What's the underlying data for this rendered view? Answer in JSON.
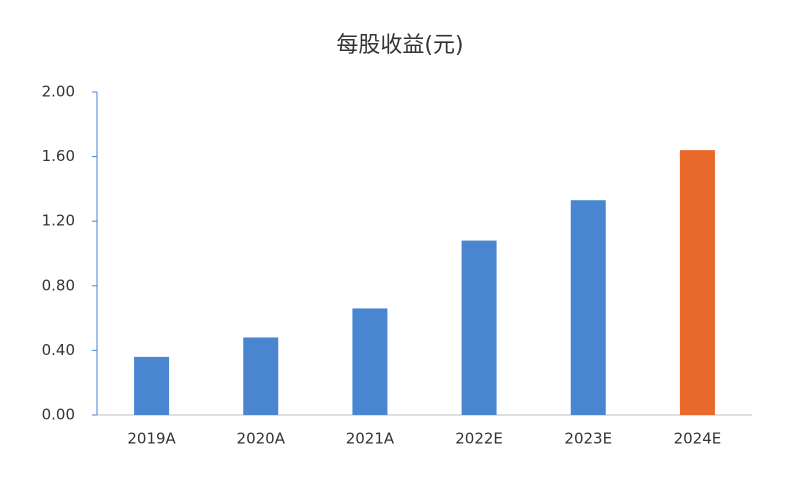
{
  "chart_data": {
    "type": "bar",
    "title": "每股收益(元)",
    "categories": [
      "2019A",
      "2020A",
      "2021A",
      "2022E",
      "2023E",
      "2024E"
    ],
    "values": [
      0.36,
      0.48,
      0.66,
      1.08,
      1.33,
      1.64
    ],
    "colors": [
      "#4a86d0",
      "#4a86d0",
      "#4a86d0",
      "#4a86d0",
      "#4a86d0",
      "#e8692a"
    ],
    "ylim": [
      0,
      2
    ],
    "yticks": [
      {
        "value": 0,
        "label": "0.00"
      },
      {
        "value": 0.4,
        "label": "0.40"
      },
      {
        "value": 0.8,
        "label": "0.80"
      },
      {
        "value": 1.2,
        "label": "1.20"
      },
      {
        "value": 1.6,
        "label": "1.60"
      },
      {
        "value": 2,
        "label": "2.00"
      }
    ],
    "grid": false
  }
}
